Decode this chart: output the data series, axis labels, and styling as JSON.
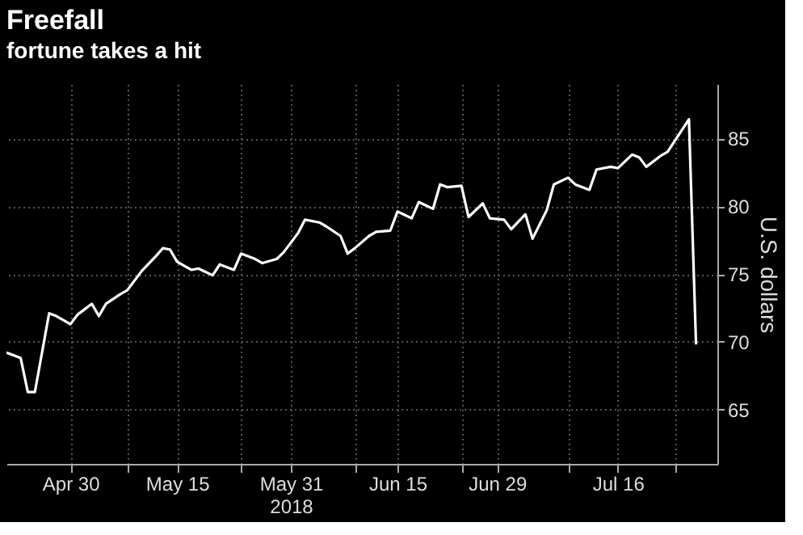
{
  "chart_data": {
    "type": "line",
    "title": "Freefall",
    "subtitle": "fortune takes a hit",
    "ylabel": "U.S. dollars",
    "x": [
      "2018-04-21",
      "2018-04-23",
      "2018-04-24",
      "2018-04-25",
      "2018-04-27",
      "2018-04-28",
      "2018-04-30",
      "2018-05-01",
      "2018-05-03",
      "2018-05-04",
      "2018-05-05",
      "2018-05-07",
      "2018-05-08",
      "2018-05-10",
      "2018-05-12",
      "2018-05-13",
      "2018-05-14",
      "2018-05-15",
      "2018-05-17",
      "2018-05-18",
      "2018-05-20",
      "2018-05-21",
      "2018-05-23",
      "2018-05-24",
      "2018-05-26",
      "2018-05-27",
      "2018-05-29",
      "2018-05-30",
      "2018-06-01",
      "2018-06-02",
      "2018-06-04",
      "2018-06-05",
      "2018-06-07",
      "2018-06-08",
      "2018-06-09",
      "2018-06-11",
      "2018-06-12",
      "2018-06-14",
      "2018-06-15",
      "2018-06-17",
      "2018-06-18",
      "2018-06-20",
      "2018-06-21",
      "2018-06-22",
      "2018-06-24",
      "2018-06-25",
      "2018-06-27",
      "2018-06-28",
      "2018-06-30",
      "2018-07-01",
      "2018-07-03",
      "2018-07-04",
      "2018-07-06",
      "2018-07-07",
      "2018-07-09",
      "2018-07-10",
      "2018-07-12",
      "2018-07-13",
      "2018-07-15",
      "2018-07-16",
      "2018-07-18",
      "2018-07-19",
      "2018-07-20",
      "2018-07-22",
      "2018-07-23",
      "2018-07-26",
      "2018-07-27"
    ],
    "series": [
      {
        "color": "#ffffff",
        "values": [
          69.2,
          68.8,
          66.3,
          66.3,
          72.1,
          71.9,
          71.3,
          72.0,
          72.8,
          71.9,
          72.8,
          73.5,
          73.8,
          75.2,
          76.3,
          76.9,
          76.8,
          75.9,
          75.3,
          75.4,
          74.9,
          75.7,
          75.3,
          76.5,
          76.1,
          75.8,
          76.1,
          76.6,
          78.0,
          79.0,
          78.8,
          78.5,
          77.8,
          76.5,
          76.9,
          77.8,
          78.1,
          78.2,
          79.6,
          79.1,
          80.3,
          79.8,
          81.6,
          81.4,
          81.5,
          79.2,
          80.2,
          79.1,
          79.0,
          78.3,
          79.4,
          77.6,
          79.7,
          81.6,
          82.1,
          81.6,
          81.2,
          82.7,
          82.9,
          82.8,
          83.8,
          83.6,
          82.9,
          83.7,
          84.0,
          86.4,
          69.8
        ]
      }
    ],
    "xlim": [
      "2018-04-21",
      "2018-07-30"
    ],
    "xticks": [
      {
        "value": "2018-04-30",
        "label": "Apr 30"
      },
      {
        "value": "2018-05-08",
        "label": null
      },
      {
        "value": "2018-05-15",
        "label": "May 15"
      },
      {
        "value": "2018-05-24",
        "label": null
      },
      {
        "value": "2018-05-31",
        "label": "May 31\n2018"
      },
      {
        "value": "2018-06-09",
        "label": null
      },
      {
        "value": "2018-06-15",
        "label": "Jun 15"
      },
      {
        "value": "2018-06-24",
        "label": null
      },
      {
        "value": "2018-06-29",
        "label": "Jun 29"
      },
      {
        "value": "2018-07-09",
        "label": null
      },
      {
        "value": "2018-07-16",
        "label": "Jul 16"
      },
      {
        "value": "2018-07-24",
        "label": null
      }
    ],
    "ylim": [
      61,
      89
    ],
    "yticks": [
      65,
      70,
      75,
      80,
      85
    ],
    "grid": true,
    "line_style": "solid",
    "marker": "none"
  }
}
